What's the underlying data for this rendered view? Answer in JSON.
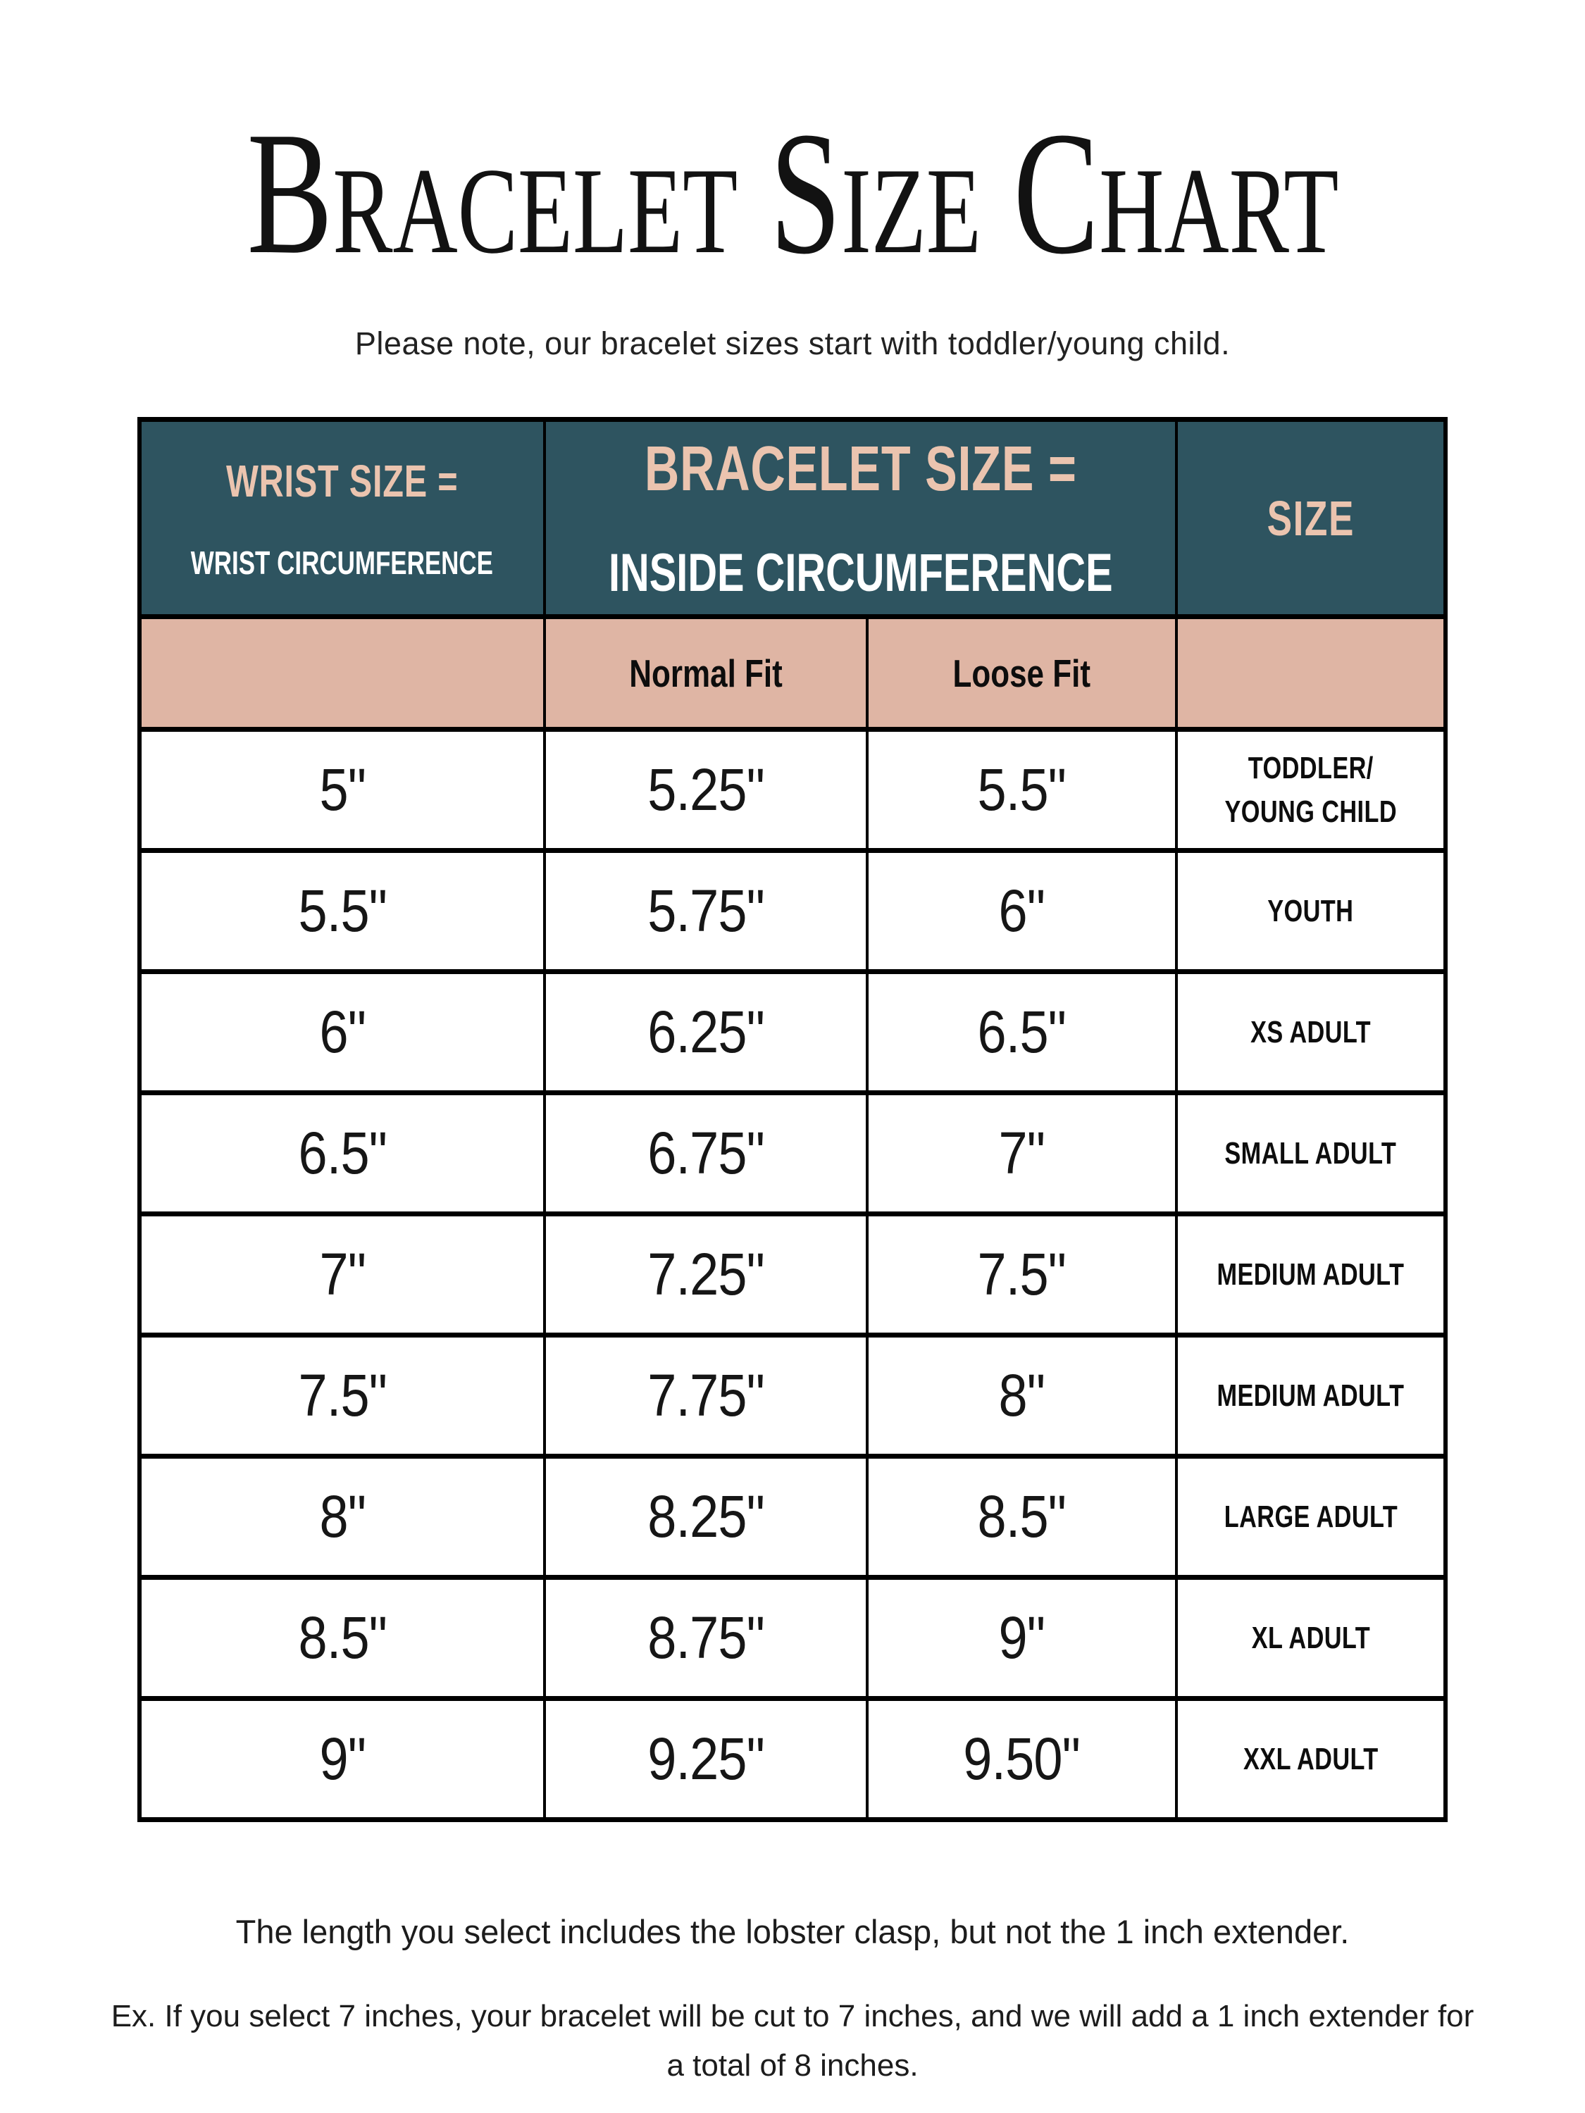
{
  "page": {
    "title": "Bracelet Size Chart",
    "subtitle": "Please note, our bracelet sizes start with toddler/young child.",
    "notes": {
      "clasp_note": "The length you select includes the lobster clasp, but not the 1 inch extender.",
      "extender_example": "Ex. If you select 7 inches, your bracelet will be cut to 7 inches, and we will add a 1 inch extender for a total of 8 inches."
    }
  },
  "colors": {
    "header_bg": "#2E5460",
    "header_accent_text": "#EBC4AF",
    "header_secondary_text": "#FFFFFF",
    "subheader_bg": "#DFB5A4",
    "border": "#000000",
    "page_bg": "#FFFFFF",
    "body_text": "#141414"
  },
  "table": {
    "header": {
      "wrist_title": "WRIST SIZE =",
      "wrist_subtitle": "WRIST CIRCUMFERENCE",
      "bracelet_title": "BRACELET SIZE =",
      "bracelet_subtitle": "INSIDE CIRCUMFERENCE",
      "size_title": "SIZE",
      "normal_fit": "Normal Fit",
      "loose_fit": "Loose Fit"
    },
    "rows": [
      {
        "wrist": "5\"",
        "normal_fit": "5.25\"",
        "loose_fit": "5.5\"",
        "size": "TODDLER/\nYOUNG CHILD"
      },
      {
        "wrist": "5.5\"",
        "normal_fit": "5.75\"",
        "loose_fit": "6\"",
        "size": "YOUTH"
      },
      {
        "wrist": "6\"",
        "normal_fit": "6.25\"",
        "loose_fit": "6.5\"",
        "size": "XS ADULT"
      },
      {
        "wrist": "6.5\"",
        "normal_fit": "6.75\"",
        "loose_fit": "7\"",
        "size": "SMALL ADULT"
      },
      {
        "wrist": "7\"",
        "normal_fit": "7.25\"",
        "loose_fit": "7.5\"",
        "size": "MEDIUM ADULT"
      },
      {
        "wrist": "7.5\"",
        "normal_fit": "7.75\"",
        "loose_fit": "8\"",
        "size": "MEDIUM ADULT"
      },
      {
        "wrist": "8\"",
        "normal_fit": "8.25\"",
        "loose_fit": "8.5\"",
        "size": "LARGE ADULT"
      },
      {
        "wrist": "8.5\"",
        "normal_fit": "8.75\"",
        "loose_fit": "9\"",
        "size": "XL ADULT"
      },
      {
        "wrist": "9\"",
        "normal_fit": "9.25\"",
        "loose_fit": "9.50\"",
        "size": "XXL ADULT"
      }
    ]
  }
}
